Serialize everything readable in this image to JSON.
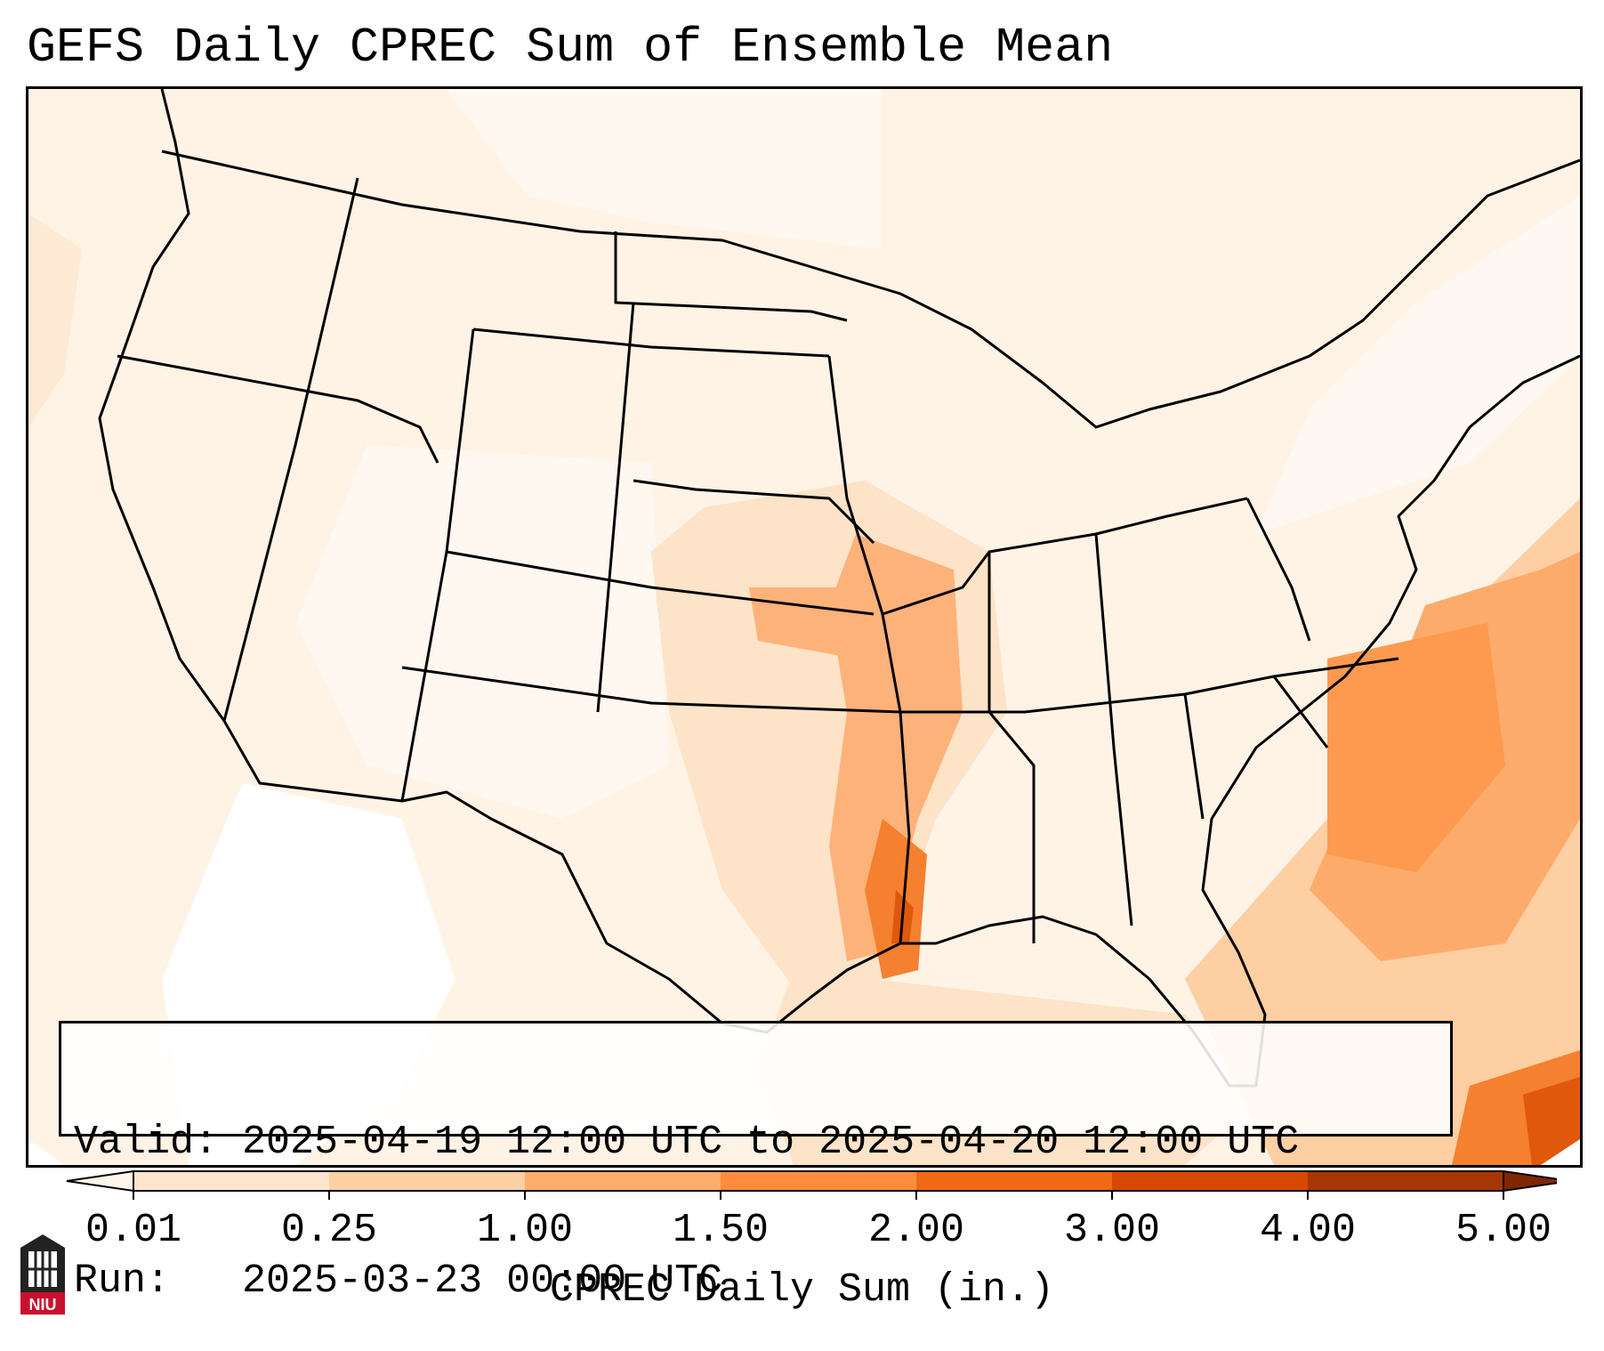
{
  "title": "GEFS Daily CPREC Sum of Ensemble Mean",
  "info": {
    "valid_label": "Valid:",
    "valid_value": "2025-04-19 12:00 UTC to 2025-04-20 12:00 UTC",
    "run_label": "Run:",
    "run_value": "2025-03-23 00:00 UTC"
  },
  "colorbar": {
    "label": "CPREC Daily Sum (in.)",
    "ticks": [
      "0.01",
      "0.25",
      "1.00",
      "1.50",
      "2.00",
      "3.00",
      "4.00",
      "5.00"
    ],
    "colors": [
      "#fff5eb",
      "#fee6ce",
      "#fdd0a2",
      "#fdae6b",
      "#fd8d3c",
      "#f16913",
      "#d94801",
      "#a63603",
      "#7f2704"
    ]
  },
  "logo": {
    "text": "NIU",
    "color": "#c8102e"
  }
}
